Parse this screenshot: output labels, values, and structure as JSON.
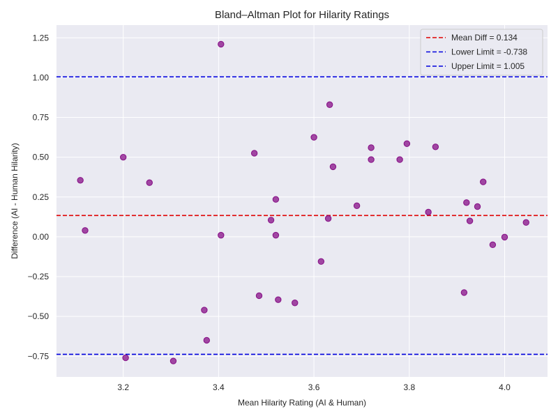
{
  "chart_data": {
    "type": "scatter",
    "title": "Bland–Altman Plot for Hilarity Ratings",
    "xlabel": "Mean Hilarity Rating (AI & Human)",
    "ylabel": "Difference (AI - Human Hilarity)",
    "xlim": [
      3.06,
      4.09
    ],
    "ylim": [
      -0.88,
      1.33
    ],
    "xticks": [
      3.2,
      3.4,
      3.6,
      3.8,
      4.0
    ],
    "xtick_labels": [
      "3.2",
      "3.4",
      "3.6",
      "3.8",
      "4.0"
    ],
    "yticks": [
      -0.75,
      -0.5,
      -0.25,
      0.0,
      0.25,
      0.5,
      0.75,
      1.0,
      1.25
    ],
    "ytick_labels": [
      "−0.75",
      "−0.50",
      "−0.25",
      "0.00",
      "0.25",
      "0.50",
      "0.75",
      "1.00",
      "1.25"
    ],
    "grid": true,
    "background": "#eaeaf2",
    "point_color": "#800080",
    "legend_position": "top-right",
    "reference_lines": [
      {
        "label": "Mean Diff = 0.134",
        "y": 0.134,
        "color": "#e00000"
      },
      {
        "label": "Lower Limit = -0.738",
        "y": -0.738,
        "color": "#0000dd"
      },
      {
        "label": "Upper Limit = 1.005",
        "y": 1.005,
        "color": "#0000dd"
      }
    ],
    "points": [
      {
        "x": 3.11,
        "y": 0.355
      },
      {
        "x": 3.12,
        "y": 0.04
      },
      {
        "x": 3.2,
        "y": 0.5
      },
      {
        "x": 3.205,
        "y": -0.76
      },
      {
        "x": 3.255,
        "y": 0.34
      },
      {
        "x": 3.305,
        "y": -0.78
      },
      {
        "x": 3.37,
        "y": -0.46
      },
      {
        "x": 3.375,
        "y": -0.65
      },
      {
        "x": 3.405,
        "y": 1.21
      },
      {
        "x": 3.405,
        "y": 0.01
      },
      {
        "x": 3.475,
        "y": 0.525
      },
      {
        "x": 3.485,
        "y": -0.37
      },
      {
        "x": 3.51,
        "y": 0.105
      },
      {
        "x": 3.52,
        "y": 0.235
      },
      {
        "x": 3.52,
        "y": 0.01
      },
      {
        "x": 3.525,
        "y": -0.395
      },
      {
        "x": 3.56,
        "y": -0.415
      },
      {
        "x": 3.6,
        "y": 0.625
      },
      {
        "x": 3.615,
        "y": -0.155
      },
      {
        "x": 3.63,
        "y": 0.115
      },
      {
        "x": 3.633,
        "y": 0.83
      },
      {
        "x": 3.64,
        "y": 0.44
      },
      {
        "x": 3.69,
        "y": 0.195
      },
      {
        "x": 3.72,
        "y": 0.56
      },
      {
        "x": 3.72,
        "y": 0.485
      },
      {
        "x": 3.78,
        "y": 0.485
      },
      {
        "x": 3.795,
        "y": 0.585
      },
      {
        "x": 3.84,
        "y": 0.155
      },
      {
        "x": 3.855,
        "y": 0.565
      },
      {
        "x": 3.915,
        "y": -0.35
      },
      {
        "x": 3.92,
        "y": 0.215
      },
      {
        "x": 3.927,
        "y": 0.1
      },
      {
        "x": 3.943,
        "y": 0.19
      },
      {
        "x": 3.955,
        "y": 0.345
      },
      {
        "x": 3.975,
        "y": -0.05
      },
      {
        "x": 4.0,
        "y": -0.002
      },
      {
        "x": 4.045,
        "y": 0.09
      }
    ]
  }
}
